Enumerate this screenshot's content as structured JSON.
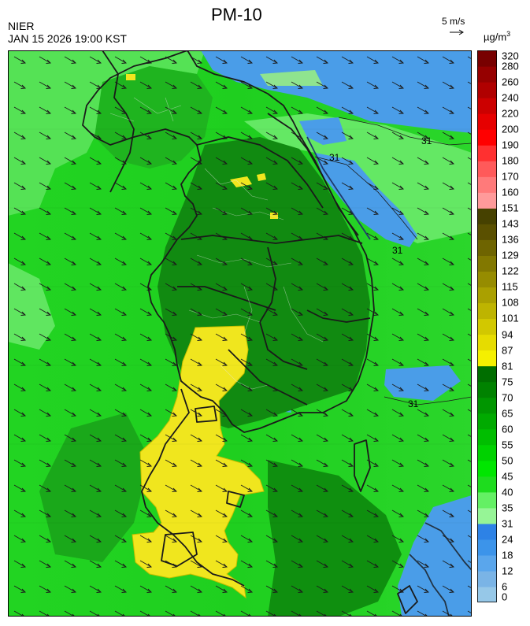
{
  "header": {
    "title": "PM-10",
    "agency": "NIER",
    "timestamp": "JAN 15 2026 19:00 KST",
    "wind_scale_label": "5 m/s",
    "unit_base": "µg/m",
    "unit_exp": "3"
  },
  "map": {
    "contour_label": "31",
    "wind_direction": "north-westerly (arrows pointing south-east)",
    "regions": [
      {
        "name": "high-pm-zone",
        "level": "81-87",
        "color": "#f0e61e"
      },
      {
        "name": "moderate-zone",
        "level": "55-75",
        "color": "#118a11"
      },
      {
        "name": "low-zone",
        "level": "18-31",
        "color": "#4a9de8"
      }
    ]
  },
  "legend": {
    "labels": [
      "0",
      "6",
      "12",
      "18",
      "24",
      "31",
      "35",
      "40",
      "45",
      "50",
      "55",
      "60",
      "65",
      "70",
      "75",
      "81",
      "87",
      "94",
      "101",
      "108",
      "115",
      "122",
      "129",
      "136",
      "143",
      "151",
      "160",
      "170",
      "180",
      "190",
      "200",
      "220",
      "240",
      "260",
      "280",
      "320"
    ],
    "colors": [
      "#96c8e8",
      "#7ab4e6",
      "#5aa6ec",
      "#3c94ea",
      "#2d82e6",
      "#96f596",
      "#64f064",
      "#1edc1e",
      "#00e600",
      "#00d200",
      "#00be00",
      "#00aa00",
      "#009600",
      "#008200",
      "#006e00",
      "#f5f000",
      "#e6dc00",
      "#d2c800",
      "#beb400",
      "#aaa000",
      "#968c00",
      "#827800",
      "#6e6400",
      "#5a5000",
      "#464100",
      "#ff9a9a",
      "#ff7a7a",
      "#ff5a5a",
      "#ff3030",
      "#ff0000",
      "#e60000",
      "#cc0000",
      "#b00000",
      "#960000",
      "#780000"
    ]
  }
}
